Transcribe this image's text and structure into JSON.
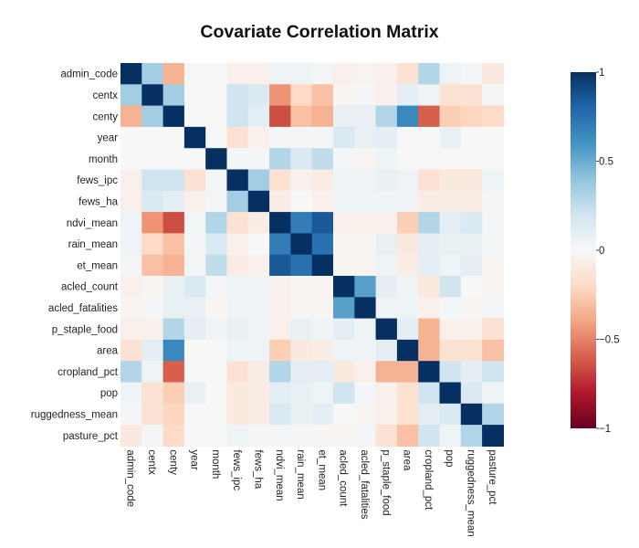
{
  "chart_data": {
    "type": "heatmap",
    "title": "Covariate Correlation Matrix",
    "xlabel": "",
    "ylabel": "",
    "variables": [
      "admin_code",
      "centx",
      "centy",
      "year",
      "month",
      "fews_ipc",
      "fews_ha",
      "ndvi_mean",
      "rain_mean",
      "et_mean",
      "acled_count",
      "acled_fatalities",
      "p_staple_food",
      "area",
      "cropland_pct",
      "pop",
      "ruggedness_mean",
      "pasture_pct"
    ],
    "value_range": [
      -1,
      1
    ],
    "colorscale": "RdBu",
    "colorbar_ticks": [
      {
        "value": 1,
        "label": "1"
      },
      {
        "value": 0.5,
        "label": "0.5"
      },
      {
        "value": 0,
        "label": "0"
      },
      {
        "value": -0.5,
        "label": "−0.5"
      },
      {
        "value": -1,
        "label": "−1"
      }
    ],
    "matrix": [
      [
        1,
        0.35,
        -0.35,
        0,
        0,
        -0.05,
        -0.05,
        0.05,
        0.05,
        0.02,
        -0.05,
        -0.03,
        -0.05,
        -0.15,
        0.3,
        0.05,
        0.02,
        -0.1
      ],
      [
        0.35,
        1,
        0.35,
        0,
        0,
        0.2,
        0.15,
        -0.45,
        -0.2,
        -0.3,
        -0.02,
        0.02,
        -0.05,
        0.1,
        0.05,
        -0.15,
        -0.15,
        0.02
      ],
      [
        -0.35,
        0.35,
        1,
        0,
        0,
        0.2,
        0.1,
        -0.65,
        -0.3,
        -0.35,
        0.08,
        0.08,
        0.3,
        0.65,
        -0.6,
        -0.25,
        -0.22,
        -0.2
      ],
      [
        0,
        0,
        0,
        1,
        0,
        -0.15,
        -0.05,
        0.02,
        0.02,
        0.02,
        0.15,
        0.08,
        0.1,
        0,
        0,
        0.08,
        0,
        0
      ],
      [
        0,
        0,
        0,
        0,
        1,
        0.02,
        0.02,
        0.3,
        0.15,
        0.25,
        0.02,
        -0.02,
        0.05,
        0,
        0,
        0,
        0,
        0
      ],
      [
        -0.05,
        0.2,
        0.2,
        -0.15,
        0.02,
        1,
        0.35,
        -0.15,
        -0.05,
        -0.08,
        0.05,
        0.05,
        0.08,
        0.05,
        -0.15,
        -0.1,
        -0.1,
        0.05
      ],
      [
        -0.05,
        0.15,
        0.1,
        -0.05,
        0.02,
        0.35,
        1,
        -0.08,
        0,
        -0.05,
        0.05,
        0.05,
        0.05,
        0.05,
        -0.08,
        -0.08,
        -0.08,
        0.02
      ],
      [
        0.05,
        -0.45,
        -0.65,
        0.02,
        0.3,
        -0.15,
        -0.08,
        1,
        0.7,
        0.85,
        -0.05,
        -0.05,
        -0.05,
        -0.25,
        0.3,
        0.1,
        0.15,
        0.02
      ],
      [
        0.05,
        -0.2,
        -0.3,
        0.02,
        0.15,
        -0.05,
        0,
        0.7,
        1,
        0.75,
        -0.02,
        -0.02,
        0.08,
        -0.1,
        0.1,
        0.08,
        0.08,
        0.02
      ],
      [
        0.02,
        -0.3,
        -0.35,
        0.02,
        0.25,
        -0.08,
        -0.05,
        0.85,
        0.75,
        1,
        -0.02,
        -0.02,
        0.05,
        -0.08,
        0.1,
        0.05,
        0.1,
        -0.02
      ],
      [
        -0.05,
        -0.02,
        0.08,
        0.15,
        0.02,
        0.05,
        0.05,
        -0.05,
        -0.02,
        -0.02,
        1,
        0.55,
        0.1,
        0.05,
        -0.1,
        0.2,
        0,
        -0.02
      ],
      [
        -0.03,
        0.02,
        0.08,
        0.08,
        -0.02,
        0.05,
        0.05,
        -0.05,
        -0.02,
        -0.02,
        0.55,
        1,
        0.05,
        0.05,
        -0.05,
        0.02,
        -0.02,
        0.02
      ],
      [
        -0.05,
        -0.05,
        0.3,
        0.1,
        0.05,
        0.08,
        0.05,
        -0.05,
        0.08,
        0.05,
        0.1,
        0.05,
        1,
        0.1,
        -0.35,
        -0.05,
        -0.05,
        -0.15
      ],
      [
        -0.15,
        0.1,
        0.65,
        0,
        0,
        0.05,
        0.05,
        -0.25,
        -0.1,
        -0.08,
        0.05,
        0.05,
        0.1,
        1,
        -0.35,
        -0.15,
        -0.15,
        -0.3
      ],
      [
        0.3,
        0.05,
        -0.6,
        0,
        0,
        -0.15,
        -0.08,
        0.3,
        0.1,
        0.1,
        -0.1,
        -0.05,
        -0.35,
        -0.35,
        1,
        0.2,
        0.1,
        0.2
      ],
      [
        0.05,
        -0.15,
        -0.25,
        0.08,
        0,
        -0.1,
        -0.08,
        0.1,
        0.08,
        0.05,
        0.2,
        0.02,
        -0.05,
        -0.15,
        0.2,
        1,
        0.15,
        0.05
      ],
      [
        0.02,
        -0.15,
        -0.22,
        0,
        0,
        -0.1,
        -0.08,
        0.15,
        0.08,
        0.1,
        0,
        -0.02,
        -0.05,
        -0.15,
        0.1,
        0.15,
        1,
        0.3
      ],
      [
        -0.1,
        0.02,
        -0.2,
        0,
        0,
        0.05,
        0.02,
        0.02,
        0.02,
        -0.02,
        -0.02,
        0.02,
        -0.15,
        -0.3,
        0.2,
        0.05,
        0.3,
        1
      ]
    ]
  }
}
